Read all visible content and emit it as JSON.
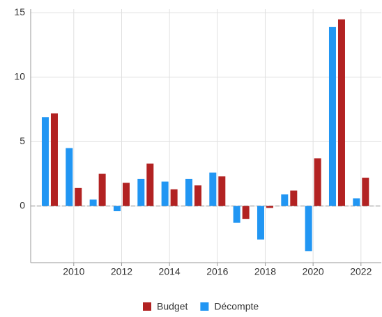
{
  "chart_data": {
    "type": "bar",
    "x": [
      2009,
      2010,
      2011,
      2012,
      2013,
      2014,
      2015,
      2016,
      2017,
      2018,
      2019,
      2020,
      2021,
      2022
    ],
    "series": [
      {
        "name": "Décompte",
        "color": "#2196f3",
        "values": [
          6.9,
          4.5,
          0.5,
          -0.4,
          2.1,
          1.9,
          2.1,
          2.6,
          -1.3,
          -2.6,
          0.9,
          -3.5,
          13.9,
          0.6
        ]
      },
      {
        "name": "Budget",
        "color": "#b22222",
        "values": [
          7.2,
          1.4,
          2.5,
          1.8,
          3.3,
          1.3,
          1.6,
          2.3,
          -1.0,
          -0.15,
          1.2,
          3.7,
          14.5,
          2.2
        ]
      }
    ],
    "legend_order": [
      "Budget",
      "Décompte"
    ],
    "xlim": [
      2008.2,
      2022.85
    ],
    "xticks": [
      2010,
      2012,
      2014,
      2016,
      2018,
      2020,
      2022
    ],
    "ylim": [
      -4.4,
      15.3
    ],
    "yticks": [
      0,
      5,
      10,
      15
    ],
    "grid": true,
    "legend": "bottom"
  }
}
